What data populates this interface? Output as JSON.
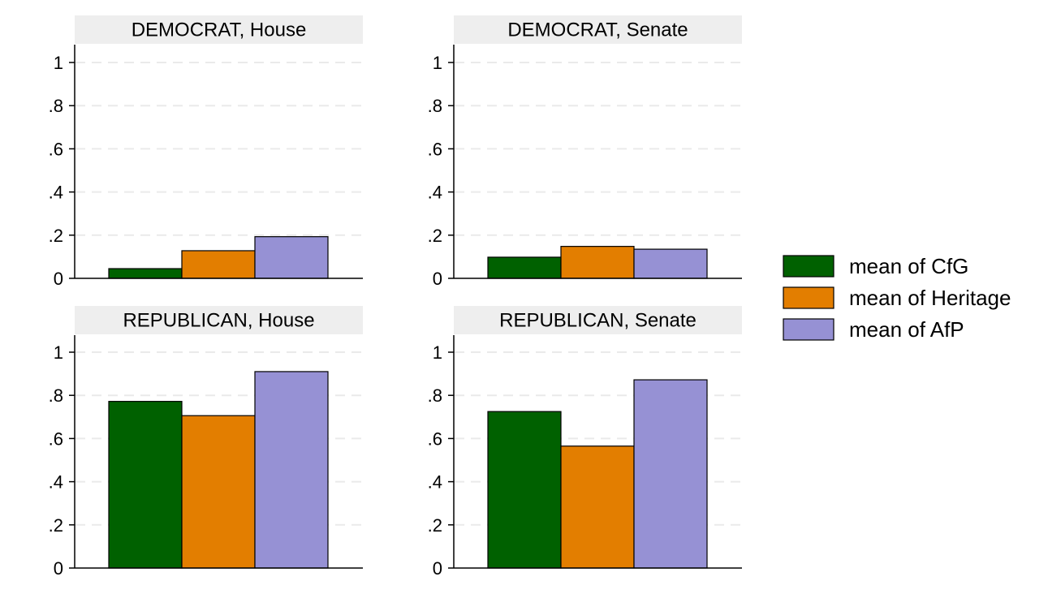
{
  "chart_data": {
    "type": "bar",
    "ylim": [
      0,
      1.08
    ],
    "yticks": [
      "0",
      ".2",
      ".4",
      ".6",
      ".8",
      "1"
    ],
    "ytick_values": [
      0,
      0.2,
      0.4,
      0.6,
      0.8,
      1.0
    ],
    "grid": true,
    "legend_position": "right",
    "colors": {
      "mean of CfG": "#006100",
      "mean of Heritage": "#e37e00",
      "mean of AfP": "#9691d4",
      "panel_header": "#eeeeee",
      "grid": "#eaeaea",
      "axis": "#000000"
    },
    "series": [
      {
        "name": "mean of CfG"
      },
      {
        "name": "mean of Heritage"
      },
      {
        "name": "mean of AfP"
      }
    ],
    "panels": [
      {
        "title": "DEMOCRAT, House",
        "values": [
          0.045,
          0.128,
          0.193
        ]
      },
      {
        "title": "DEMOCRAT, Senate",
        "values": [
          0.098,
          0.148,
          0.135
        ]
      },
      {
        "title": "REPUBLICAN, House",
        "values": [
          0.772,
          0.706,
          0.91
        ]
      },
      {
        "title": "REPUBLICAN, Senate",
        "values": [
          0.725,
          0.565,
          0.872
        ]
      }
    ]
  }
}
